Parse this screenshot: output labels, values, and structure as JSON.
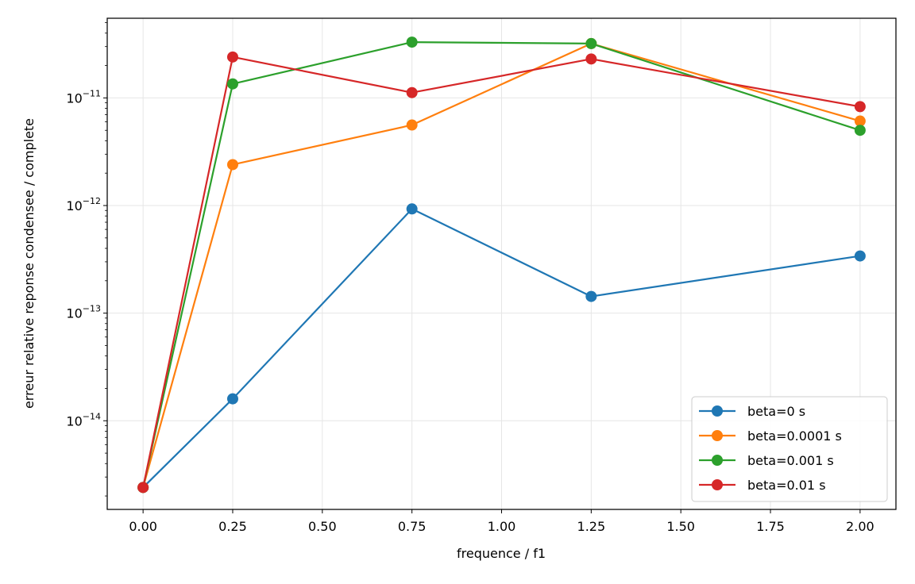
{
  "chart_data": {
    "type": "line",
    "title": "",
    "xlabel": "frequence / f1",
    "ylabel": "erreur relative reponse condensee / complete",
    "yscale": "log",
    "xlim": [
      -0.1,
      2.1
    ],
    "ylim": [
      1.5e-15,
      5.5e-11
    ],
    "x_ticks": [
      0.0,
      0.25,
      0.5,
      0.75,
      1.0,
      1.25,
      1.5,
      1.75,
      2.0
    ],
    "x_tick_labels": [
      "0.00",
      "0.25",
      "0.50",
      "0.75",
      "1.00",
      "1.25",
      "1.50",
      "1.75",
      "2.00"
    ],
    "y_ticks": [
      1e-14,
      1e-13,
      1e-12,
      1e-11
    ],
    "y_tick_labels": [
      {
        "base": "10",
        "exp": "−14"
      },
      {
        "base": "10",
        "exp": "−13"
      },
      {
        "base": "10",
        "exp": "−12"
      },
      {
        "base": "10",
        "exp": "−11"
      }
    ],
    "grid": true,
    "legend_position": "lower-right",
    "x": [
      0.0,
      0.25,
      0.75,
      1.25,
      2.0
    ],
    "series": [
      {
        "name": "beta=0 s",
        "color": "#1f77b4",
        "values": [
          2.4e-15,
          1.6e-14,
          9.3e-13,
          1.43e-13,
          3.4e-13
        ]
      },
      {
        "name": "beta=0.0001 s",
        "color": "#ff7f0e",
        "values": [
          2.4e-15,
          2.4e-12,
          5.6e-12,
          3.2e-11,
          6.1e-12
        ]
      },
      {
        "name": "beta=0.001 s",
        "color": "#2ca02c",
        "values": [
          2.4e-15,
          1.35e-11,
          3.3e-11,
          3.2e-11,
          5e-12
        ]
      },
      {
        "name": "beta=0.01 s",
        "color": "#d62728",
        "values": [
          2.4e-15,
          2.4e-11,
          1.12e-11,
          2.3e-11,
          8.3e-12
        ]
      }
    ]
  }
}
